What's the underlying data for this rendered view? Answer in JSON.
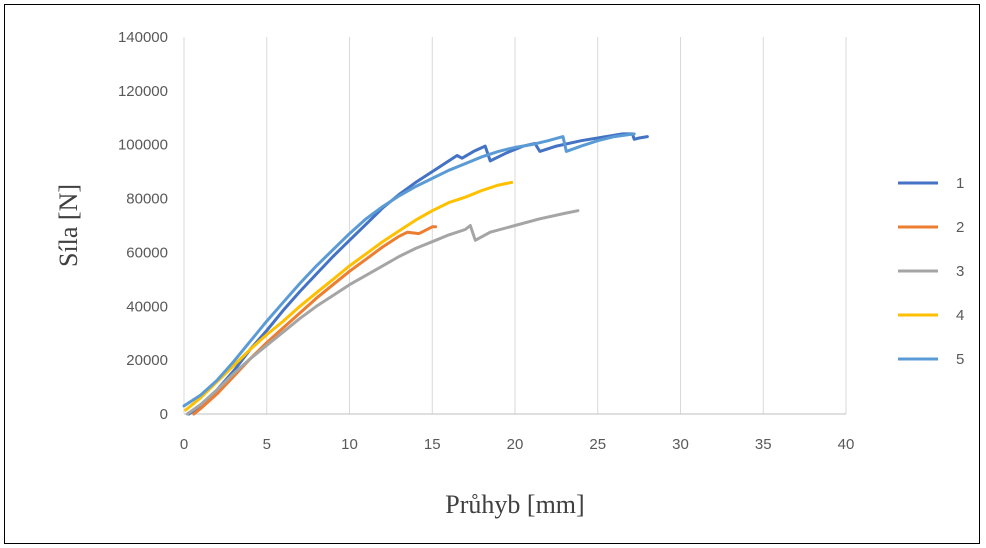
{
  "chart_data": {
    "type": "line",
    "title": "",
    "xlabel": "Průhyb [mm]",
    "ylabel": "Síla [N]",
    "xlim": [
      0,
      40
    ],
    "ylim": [
      0,
      140000
    ],
    "xticks": [
      0,
      5,
      10,
      15,
      20,
      25,
      30,
      35,
      40
    ],
    "yticks": [
      0,
      20000,
      40000,
      60000,
      80000,
      100000,
      120000,
      140000
    ],
    "grid": "vertical",
    "legend_position": "right",
    "series": [
      {
        "name": "1",
        "color": "#4472C4",
        "points": [
          [
            0.3,
            0
          ],
          [
            1,
            3000
          ],
          [
            2,
            9000
          ],
          [
            3,
            16000
          ],
          [
            4,
            24000
          ],
          [
            5,
            31000
          ],
          [
            6,
            38500
          ],
          [
            7,
            45500
          ],
          [
            8,
            52000
          ],
          [
            9,
            58500
          ],
          [
            10,
            64500
          ],
          [
            11,
            70500
          ],
          [
            12,
            76500
          ],
          [
            13,
            81500
          ],
          [
            14,
            86000
          ],
          [
            15,
            90000
          ],
          [
            16,
            94000
          ],
          [
            16.5,
            96000
          ],
          [
            16.8,
            95000
          ],
          [
            17.5,
            97500
          ],
          [
            18.2,
            99500
          ],
          [
            18.5,
            94000
          ],
          [
            19.5,
            97000
          ],
          [
            20.5,
            99500
          ],
          [
            21.2,
            100500
          ],
          [
            21.5,
            97500
          ],
          [
            22.5,
            99500
          ],
          [
            24,
            101500
          ],
          [
            25.5,
            103000
          ],
          [
            26.5,
            104000
          ],
          [
            27.1,
            104000
          ],
          [
            27.2,
            102000
          ],
          [
            27.5,
            102500
          ],
          [
            28,
            103000
          ]
        ]
      },
      {
        "name": "2",
        "color": "#ED7D31",
        "points": [
          [
            0.6,
            0
          ],
          [
            1,
            2000
          ],
          [
            2,
            7500
          ],
          [
            3,
            14000
          ],
          [
            4,
            20500
          ],
          [
            5,
            26500
          ],
          [
            6,
            32000
          ],
          [
            7,
            37500
          ],
          [
            8,
            43000
          ],
          [
            9,
            48000
          ],
          [
            10,
            53000
          ],
          [
            11,
            57500
          ],
          [
            12,
            62000
          ],
          [
            13,
            66000
          ],
          [
            13.5,
            67500
          ],
          [
            14.2,
            67000
          ],
          [
            15,
            69500
          ],
          [
            15.2,
            69500
          ]
        ]
      },
      {
        "name": "3",
        "color": "#A5A5A5",
        "points": [
          [
            0.2,
            0
          ],
          [
            1,
            3500
          ],
          [
            2,
            9000
          ],
          [
            3,
            15000
          ],
          [
            4,
            20500
          ],
          [
            5,
            25500
          ],
          [
            6,
            30500
          ],
          [
            7,
            35500
          ],
          [
            8,
            40000
          ],
          [
            9,
            44000
          ],
          [
            10,
            48000
          ],
          [
            11,
            51500
          ],
          [
            12,
            55000
          ],
          [
            13,
            58500
          ],
          [
            14,
            61500
          ],
          [
            15,
            64000
          ],
          [
            16,
            66500
          ],
          [
            17,
            68500
          ],
          [
            17.3,
            70000
          ],
          [
            17.6,
            64500
          ],
          [
            18.5,
            67500
          ],
          [
            20,
            70000
          ],
          [
            21.5,
            72500
          ],
          [
            23,
            74500
          ],
          [
            23.8,
            75500
          ]
        ]
      },
      {
        "name": "4",
        "color": "#FFC000",
        "points": [
          [
            0.1,
            1500
          ],
          [
            1,
            6000
          ],
          [
            2,
            12000
          ],
          [
            3,
            18000
          ],
          [
            4,
            24000
          ],
          [
            5,
            29500
          ],
          [
            6,
            34500
          ],
          [
            7,
            40000
          ],
          [
            8,
            45000
          ],
          [
            9,
            50000
          ],
          [
            10,
            55000
          ],
          [
            11,
            59500
          ],
          [
            12,
            64000
          ],
          [
            13,
            68000
          ],
          [
            14,
            72000
          ],
          [
            15,
            75500
          ],
          [
            16,
            78500
          ],
          [
            17,
            80500
          ],
          [
            18,
            83000
          ],
          [
            19,
            85000
          ],
          [
            19.8,
            86000
          ]
        ]
      },
      {
        "name": "5",
        "color": "#5B9BD5",
        "points": [
          [
            0,
            3000
          ],
          [
            1,
            7000
          ],
          [
            2,
            12500
          ],
          [
            3,
            19500
          ],
          [
            4,
            27000
          ],
          [
            5,
            34500
          ],
          [
            6,
            41500
          ],
          [
            7,
            48500
          ],
          [
            8,
            55000
          ],
          [
            9,
            61000
          ],
          [
            10,
            67000
          ],
          [
            11,
            72500
          ],
          [
            12,
            77000
          ],
          [
            13,
            81000
          ],
          [
            14,
            84500
          ],
          [
            15,
            87500
          ],
          [
            16,
            90500
          ],
          [
            17,
            93000
          ],
          [
            18,
            95500
          ],
          [
            19,
            97500
          ],
          [
            20,
            99000
          ],
          [
            21,
            100000
          ],
          [
            22,
            101500
          ],
          [
            22.9,
            103000
          ],
          [
            23.1,
            97500
          ],
          [
            24,
            99500
          ],
          [
            25,
            101500
          ],
          [
            26,
            103000
          ],
          [
            27.2,
            104000
          ]
        ]
      }
    ]
  }
}
